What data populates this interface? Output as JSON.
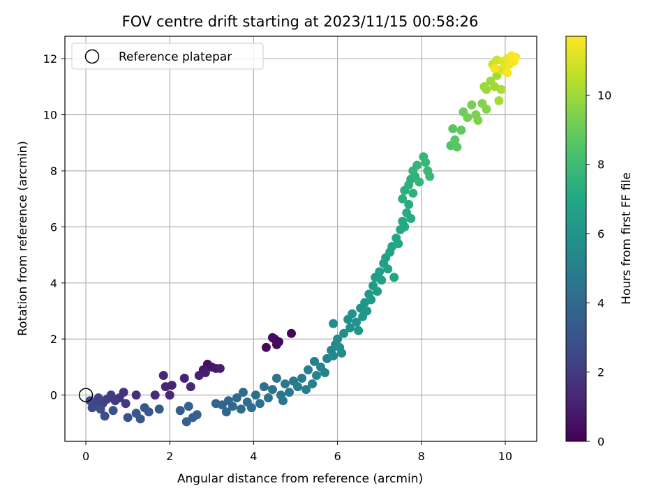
{
  "chart_data": {
    "type": "scatter",
    "title": "FOV centre drift starting at 2023/11/15 00:58:26",
    "xlabel": "Angular distance from reference (arcmin)",
    "ylabel": "Rotation from reference (arcmin)",
    "xlim": [
      -0.5,
      10.75
    ],
    "ylim": [
      -1.65,
      12.8
    ],
    "x_ticks": [
      0,
      2,
      4,
      6,
      8,
      10
    ],
    "y_ticks": [
      0,
      2,
      4,
      6,
      8,
      10,
      12
    ],
    "grid": true,
    "legend": {
      "placement": "top-left",
      "entries": [
        "Reference platepar"
      ]
    },
    "reference": {
      "name": "Reference platepar",
      "x": 0,
      "y": 0
    },
    "colorbar": {
      "label": "Hours from first FF file",
      "range": [
        0,
        11.7
      ],
      "ticks": [
        0,
        2,
        4,
        6,
        8,
        10
      ],
      "colormap": "viridis"
    },
    "points": [
      [
        4.9,
        2.2,
        0.1
      ],
      [
        4.5,
        2.0,
        0.15
      ],
      [
        4.6,
        1.9,
        0.2
      ],
      [
        4.3,
        1.7,
        0.25
      ],
      [
        4.55,
        1.8,
        0.3
      ],
      [
        4.45,
        2.05,
        0.35
      ],
      [
        2.9,
        1.1,
        0.5
      ],
      [
        3.0,
        1.0,
        0.6
      ],
      [
        2.8,
        0.9,
        0.7
      ],
      [
        3.1,
        0.95,
        0.8
      ],
      [
        2.85,
        0.8,
        0.9
      ],
      [
        3.2,
        0.95,
        1.0
      ],
      [
        2.7,
        0.7,
        1.05
      ],
      [
        2.35,
        0.6,
        1.1
      ],
      [
        2.05,
        0.35,
        1.15
      ],
      [
        1.9,
        0.3,
        1.2
      ],
      [
        1.85,
        0.7,
        1.25
      ],
      [
        2.0,
        0.0,
        1.3
      ],
      [
        2.5,
        0.3,
        1.35
      ],
      [
        1.65,
        0.0,
        1.5
      ],
      [
        1.2,
        0.0,
        1.6
      ],
      [
        0.9,
        0.1,
        1.7
      ],
      [
        0.8,
        -0.1,
        1.8
      ],
      [
        0.95,
        -0.3,
        1.9
      ],
      [
        0.7,
        -0.2,
        2.0
      ],
      [
        0.6,
        0.0,
        2.05
      ],
      [
        0.5,
        -0.15,
        2.1
      ],
      [
        0.4,
        -0.3,
        2.2
      ],
      [
        0.3,
        -0.1,
        2.3
      ],
      [
        0.2,
        -0.35,
        2.4
      ],
      [
        0.1,
        -0.2,
        2.5
      ],
      [
        0.15,
        -0.45,
        2.6
      ],
      [
        0.35,
        -0.5,
        2.7
      ],
      [
        0.45,
        -0.75,
        2.8
      ],
      [
        0.65,
        -0.55,
        2.9
      ],
      [
        1.0,
        -0.8,
        3.0
      ],
      [
        1.2,
        -0.65,
        3.1
      ],
      [
        1.3,
        -0.85,
        3.15
      ],
      [
        1.4,
        -0.45,
        3.2
      ],
      [
        1.5,
        -0.6,
        3.25
      ],
      [
        1.75,
        -0.5,
        3.3
      ],
      [
        2.25,
        -0.55,
        3.4
      ],
      [
        2.4,
        -0.95,
        3.5
      ],
      [
        2.55,
        -0.8,
        3.55
      ],
      [
        2.65,
        -0.7,
        3.6
      ],
      [
        2.45,
        -0.4,
        3.65
      ],
      [
        3.1,
        -0.3,
        3.75
      ],
      [
        3.25,
        -0.35,
        3.8
      ],
      [
        3.35,
        -0.6,
        3.85
      ],
      [
        3.4,
        -0.2,
        3.9
      ],
      [
        3.5,
        -0.4,
        3.95
      ],
      [
        3.6,
        -0.1,
        4.0
      ],
      [
        3.7,
        -0.5,
        4.05
      ],
      [
        3.75,
        0.1,
        4.1
      ],
      [
        3.85,
        -0.25,
        4.15
      ],
      [
        3.95,
        -0.45,
        4.2
      ],
      [
        4.05,
        0.0,
        4.25
      ],
      [
        4.15,
        -0.3,
        4.3
      ],
      [
        4.25,
        0.3,
        4.35
      ],
      [
        4.35,
        -0.1,
        4.4
      ],
      [
        4.45,
        0.2,
        4.45
      ],
      [
        4.55,
        0.6,
        4.5
      ],
      [
        4.65,
        0.0,
        4.55
      ],
      [
        4.7,
        -0.2,
        4.6
      ],
      [
        4.75,
        0.4,
        4.65
      ],
      [
        4.85,
        0.1,
        4.7
      ],
      [
        4.95,
        0.5,
        4.75
      ],
      [
        5.05,
        0.3,
        4.8
      ],
      [
        5.15,
        0.6,
        4.85
      ],
      [
        5.25,
        0.2,
        4.9
      ],
      [
        5.3,
        0.9,
        4.95
      ],
      [
        5.4,
        0.4,
        5.0
      ],
      [
        5.45,
        1.2,
        5.05
      ],
      [
        5.5,
        0.7,
        5.1
      ],
      [
        5.6,
        1.0,
        5.15
      ],
      [
        5.7,
        0.8,
        5.2
      ],
      [
        5.75,
        1.3,
        5.25
      ],
      [
        5.85,
        1.6,
        5.3
      ],
      [
        5.9,
        1.4,
        5.4
      ],
      [
        5.95,
        1.8,
        5.5
      ],
      [
        6.0,
        2.0,
        5.55
      ],
      [
        6.05,
        1.7,
        5.6
      ],
      [
        6.1,
        1.5,
        5.65
      ],
      [
        6.15,
        2.2,
        5.7
      ],
      [
        5.9,
        2.55,
        5.75
      ],
      [
        6.25,
        2.7,
        5.8
      ],
      [
        6.3,
        2.4,
        5.85
      ],
      [
        6.35,
        2.9,
        5.9
      ],
      [
        6.45,
        2.6,
        5.95
      ],
      [
        6.5,
        2.3,
        6.0
      ],
      [
        6.55,
        3.1,
        6.05
      ],
      [
        6.6,
        2.8,
        6.1
      ],
      [
        6.65,
        3.3,
        6.15
      ],
      [
        6.7,
        3.0,
        6.2
      ],
      [
        6.75,
        3.6,
        6.25
      ],
      [
        6.8,
        3.4,
        6.3
      ],
      [
        6.85,
        3.9,
        6.35
      ],
      [
        6.9,
        4.2,
        6.4
      ],
      [
        6.95,
        3.7,
        6.45
      ],
      [
        7.0,
        4.4,
        6.5
      ],
      [
        7.05,
        4.1,
        6.55
      ],
      [
        7.1,
        4.7,
        6.6
      ],
      [
        7.15,
        4.9,
        6.65
      ],
      [
        7.2,
        4.5,
        6.7
      ],
      [
        7.25,
        5.1,
        6.75
      ],
      [
        7.3,
        5.3,
        6.8
      ],
      [
        7.35,
        4.2,
        6.85
      ],
      [
        7.4,
        5.6,
        6.9
      ],
      [
        7.45,
        5.4,
        6.95
      ],
      [
        7.5,
        5.9,
        7.0
      ],
      [
        7.55,
        6.2,
        7.05
      ],
      [
        7.6,
        6.0,
        7.1
      ],
      [
        7.65,
        6.5,
        7.15
      ],
      [
        7.7,
        6.8,
        7.2
      ],
      [
        7.75,
        6.3,
        7.25
      ],
      [
        7.55,
        7.0,
        7.3
      ],
      [
        7.6,
        7.3,
        7.35
      ],
      [
        7.7,
        7.5,
        7.4
      ],
      [
        7.75,
        7.7,
        7.45
      ],
      [
        7.8,
        7.2,
        7.5
      ],
      [
        7.85,
        7.8,
        7.55
      ],
      [
        7.8,
        8.0,
        7.6
      ],
      [
        7.9,
        8.2,
        7.65
      ],
      [
        7.95,
        7.6,
        7.7
      ],
      [
        8.05,
        8.5,
        7.75
      ],
      [
        8.1,
        8.3,
        7.8
      ],
      [
        8.15,
        8.0,
        7.85
      ],
      [
        8.2,
        7.8,
        7.9
      ],
      [
        8.7,
        8.9,
        8.5
      ],
      [
        8.75,
        9.5,
        8.6
      ],
      [
        8.8,
        9.1,
        8.65
      ],
      [
        8.85,
        8.85,
        8.7
      ],
      [
        8.95,
        9.45,
        8.75
      ],
      [
        9.0,
        10.1,
        9.1
      ],
      [
        9.1,
        9.9,
        9.2
      ],
      [
        9.2,
        10.35,
        9.3
      ],
      [
        9.3,
        10.0,
        9.4
      ],
      [
        9.35,
        9.8,
        9.45
      ],
      [
        9.45,
        10.4,
        9.5
      ],
      [
        9.55,
        10.2,
        9.55
      ],
      [
        9.5,
        11.0,
        9.9
      ],
      [
        9.55,
        10.9,
        9.95
      ],
      [
        9.65,
        11.2,
        10.0
      ],
      [
        9.75,
        11.0,
        10.05
      ],
      [
        9.8,
        11.4,
        10.1
      ],
      [
        9.85,
        10.5,
        10.15
      ],
      [
        9.9,
        10.9,
        10.2
      ],
      [
        9.7,
        11.8,
        10.8
      ],
      [
        9.8,
        11.95,
        10.9
      ],
      [
        9.9,
        11.6,
        11.0
      ],
      [
        9.95,
        11.9,
        11.1
      ],
      [
        10.0,
        11.75,
        11.2
      ],
      [
        10.05,
        12.0,
        11.3
      ],
      [
        10.1,
        11.8,
        11.4
      ],
      [
        10.15,
        12.1,
        11.5
      ],
      [
        10.2,
        11.9,
        11.6
      ],
      [
        10.25,
        12.05,
        11.7
      ],
      [
        10.05,
        11.5,
        11.6
      ],
      [
        9.75,
        11.65,
        11.5
      ]
    ]
  }
}
